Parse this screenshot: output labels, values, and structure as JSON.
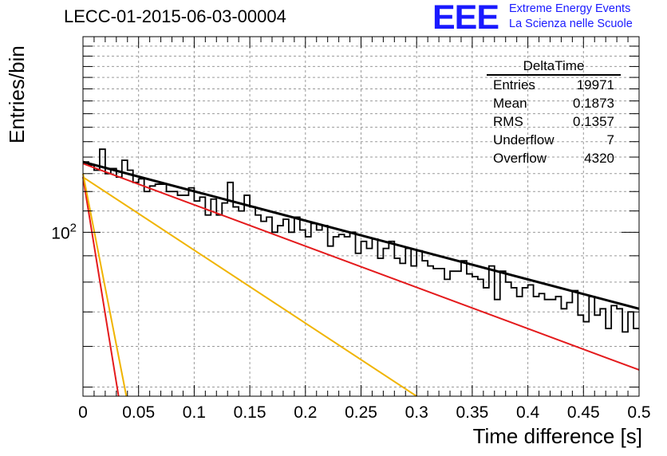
{
  "header": {
    "run_title": "LECC-01-2015-06-03-00004",
    "logo_mark": "EEE",
    "logo_line1": "Extreme Energy Events",
    "logo_line2": "La Scienza nelle Scuole"
  },
  "stats_box": {
    "title": "DeltaTime",
    "rows": [
      {
        "label": "Entries",
        "value": "19971"
      },
      {
        "label": "Mean",
        "value": "0.1873"
      },
      {
        "label": "RMS",
        "value": "0.1357"
      },
      {
        "label": "Underflow",
        "value": "7"
      },
      {
        "label": "Overflow",
        "value": "4320"
      }
    ]
  },
  "colors": {
    "histogram": "#000000",
    "total_fit": "#000000",
    "red_curves": "#e41a1c",
    "yellow_curves": "#f0b400",
    "grid": "#9a9a9a"
  },
  "chart_data": {
    "type": "line",
    "title": "LECC-01-2015-06-03-00004",
    "xlabel": "Time difference [s]",
    "ylabel": "Entries/bin",
    "x_ticks": [
      "0",
      "0.05",
      "0.1",
      "0.15",
      "0.2",
      "0.25",
      "0.3",
      "0.35",
      "0.4",
      "0.45",
      "0.5"
    ],
    "y_tick_labels": [
      "10^2"
    ],
    "xlim": [
      0,
      0.5
    ],
    "ylim": [
      48,
      240
    ],
    "y_scale": "log",
    "grid": true,
    "legend": "none",
    "histogram": {
      "bin_width": 0.005,
      "values": [
        137,
        135,
        132,
        145,
        130,
        133,
        128,
        138,
        132,
        125,
        127,
        120,
        123,
        124,
        124,
        120,
        120,
        118,
        118,
        122,
        115,
        117,
        108,
        116,
        108,
        114,
        125,
        112,
        110,
        118,
        112,
        108,
        105,
        107,
        100,
        103,
        106,
        100,
        107,
        101,
        98,
        104,
        101,
        103,
        94,
        98,
        99,
        98,
        100,
        91,
        96,
        93,
        97,
        89,
        93,
        96,
        89,
        87,
        93,
        86,
        92,
        88,
        86,
        85,
        85,
        81,
        84,
        84,
        88,
        83,
        82,
        81,
        78,
        86,
        74,
        84,
        80,
        78,
        75,
        78,
        79,
        75,
        76,
        74,
        74,
        75,
        71,
        73,
        77,
        69,
        67,
        75,
        69,
        71,
        65,
        72,
        71,
        64,
        70,
        65
      ]
    },
    "curves": [
      {
        "name": "",
        "color": "red",
        "x": [
          0,
          0.5
        ],
        "y": [
          136,
          54
        ]
      },
      {
        "name": "",
        "color": "red",
        "x": [
          0,
          0.032
        ],
        "y": [
          128,
          48
        ]
      },
      {
        "name": "",
        "color": "yellow",
        "x": [
          0,
          0.3
        ],
        "y": [
          128,
          48
        ]
      },
      {
        "name": "",
        "color": "yellow",
        "x": [
          0,
          0.039
        ],
        "y": [
          130,
          48
        ]
      },
      {
        "name": "",
        "color": "black",
        "x": [
          0,
          0.5
        ],
        "y": [
          137,
          71
        ]
      }
    ]
  }
}
